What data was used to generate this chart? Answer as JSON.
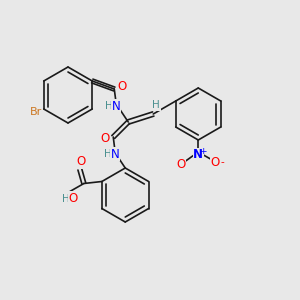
{
  "bg_color": "#e8e8e8",
  "bond_color": "#1a1a1a",
  "bond_width": 1.2,
  "atom_colors": {
    "O": "#ff0000",
    "N": "#0000ff",
    "Br": "#cc7722",
    "H": "#4a9090",
    "C": "#1a1a1a"
  },
  "font_size": 8.5
}
